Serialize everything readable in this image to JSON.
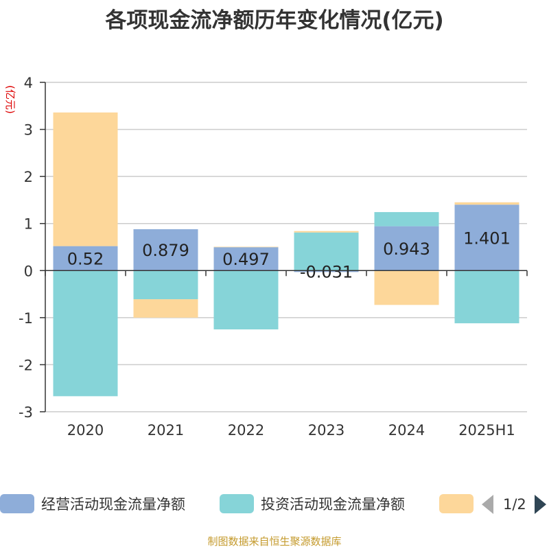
{
  "title": "各项现金流净额历年变化情况(亿元)",
  "source": "制图数据来自恒生聚源数据库",
  "pager": {
    "text": "1/2"
  },
  "chart_data": {
    "type": "bar",
    "stacked": true,
    "title": "各项现金流净额历年变化情况(亿元)",
    "ylabel": "(亿元)",
    "xlabel": "",
    "categories": [
      "2020",
      "2021",
      "2022",
      "2023",
      "2024",
      "2025H1"
    ],
    "ylim": [
      -3,
      4
    ],
    "yticks": [
      -3,
      -2,
      -1,
      0,
      1,
      2,
      3,
      4
    ],
    "grid": true,
    "legend_position": "bottom",
    "series": [
      {
        "name": "经营活动现金流量净额",
        "color": "#8eadd9",
        "values": [
          0.52,
          0.879,
          0.497,
          -0.031,
          0.943,
          1.401
        ],
        "labels": [
          "0.52",
          "0.879",
          "0.497",
          "-0.031",
          "0.943",
          "1.401"
        ]
      },
      {
        "name": "投资活动现金流量净额",
        "color": "#86d4d8",
        "values": [
          -2.67,
          -0.61,
          -1.25,
          0.81,
          0.3,
          -1.12
        ]
      },
      {
        "name": "",
        "color": "#fdd79a",
        "values": [
          2.84,
          -0.39,
          0.01,
          0.03,
          -0.73,
          0.05
        ]
      }
    ]
  }
}
